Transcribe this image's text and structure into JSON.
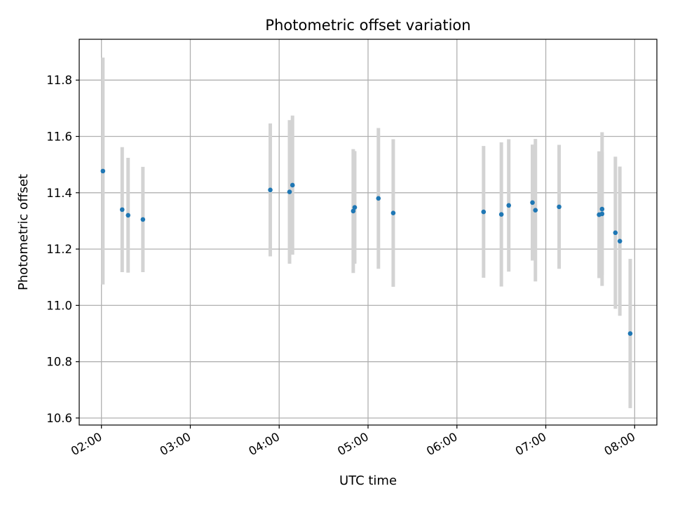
{
  "chart_data": {
    "type": "scatter",
    "title": "Photometric offset variation",
    "xlabel": "UTC time",
    "ylabel": "Photometric offset",
    "x_axis_type": "time",
    "xlim": [
      "01:45",
      "08:15"
    ],
    "ylim": [
      10.575,
      11.945
    ],
    "grid": true,
    "x_ticks": [
      "02:00",
      "03:00",
      "04:00",
      "05:00",
      "06:00",
      "07:00",
      "08:00"
    ],
    "y_ticks": [
      "10.6",
      "10.8",
      "11.0",
      "11.2",
      "11.4",
      "11.6",
      "11.8"
    ],
    "colors": {
      "points": "#1f77b4",
      "error_bars": "#d3d3d3",
      "grid": "#b0b0b0"
    },
    "series": [
      {
        "points": [
          {
            "time": "02:01",
            "y": 11.477,
            "err": 0.403
          },
          {
            "time": "02:14",
            "y": 11.34,
            "err": 0.222
          },
          {
            "time": "02:18",
            "y": 11.32,
            "err": 0.204
          },
          {
            "time": "02:28",
            "y": 11.305,
            "err": 0.187
          },
          {
            "time": "03:54",
            "y": 11.41,
            "err": 0.236
          },
          {
            "time": "04:07",
            "y": 11.403,
            "err": 0.255
          },
          {
            "time": "04:09",
            "y": 11.427,
            "err": 0.247
          },
          {
            "time": "04:50",
            "y": 11.335,
            "err": 0.22
          },
          {
            "time": "04:51",
            "y": 11.348,
            "err": 0.2
          },
          {
            "time": "05:07",
            "y": 11.38,
            "err": 0.25
          },
          {
            "time": "05:17",
            "y": 11.328,
            "err": 0.262
          },
          {
            "time": "06:18",
            "y": 11.332,
            "err": 0.234
          },
          {
            "time": "06:30",
            "y": 11.323,
            "err": 0.256
          },
          {
            "time": "06:35",
            "y": 11.355,
            "err": 0.235
          },
          {
            "time": "06:51",
            "y": 11.365,
            "err": 0.206
          },
          {
            "time": "06:53",
            "y": 11.338,
            "err": 0.253
          },
          {
            "time": "07:09",
            "y": 11.35,
            "err": 0.22
          },
          {
            "time": "07:36",
            "y": 11.322,
            "err": 0.225
          },
          {
            "time": "07:38",
            "y": 11.342,
            "err": 0.273
          },
          {
            "time": "07:38",
            "y": 11.325,
            "err": 0.218
          },
          {
            "time": "07:47",
            "y": 11.258,
            "err": 0.27
          },
          {
            "time": "07:50",
            "y": 11.228,
            "err": 0.265
          },
          {
            "time": "07:57",
            "y": 10.9,
            "err": 0.265
          }
        ]
      }
    ]
  }
}
